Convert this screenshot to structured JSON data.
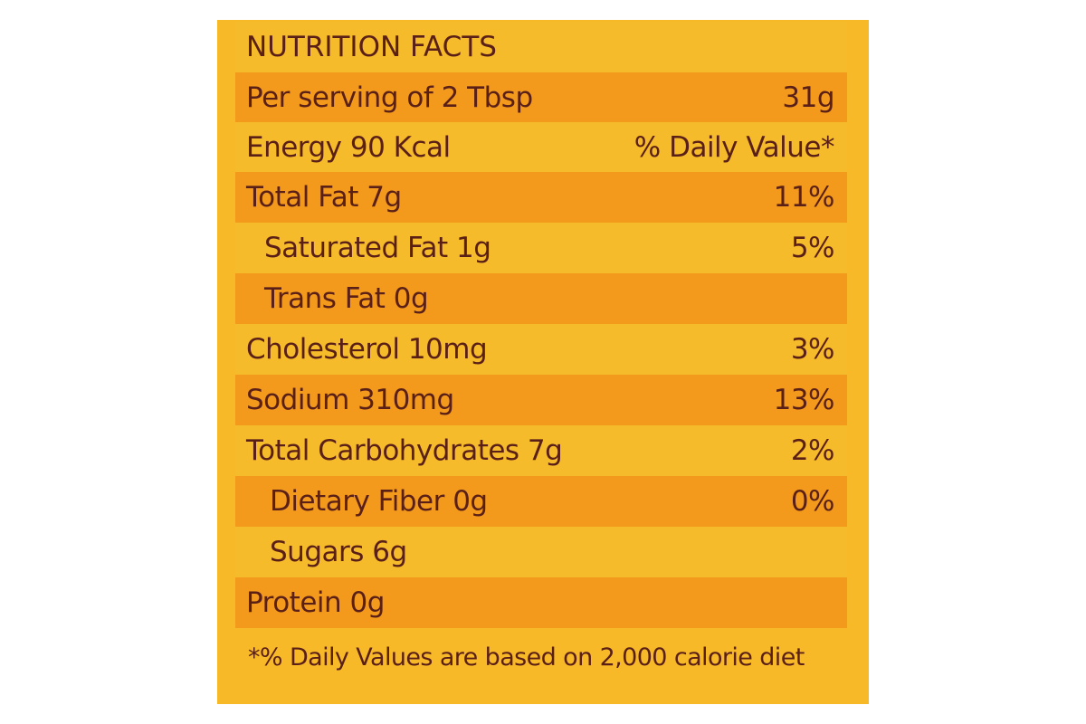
{
  "label": {
    "title": "NUTRITION FACTS",
    "rows": [
      {
        "name": "Per serving of 2 Tbsp",
        "value": "31g"
      },
      {
        "name": "Energy 90 Kcal",
        "value": "% Daily Value*"
      },
      {
        "name": "Total Fat 7g",
        "value": "11%"
      },
      {
        "name": "Saturated Fat 1g",
        "value": "5%"
      },
      {
        "name": "Trans Fat 0g",
        "value": ""
      },
      {
        "name": "Cholesterol 10mg",
        "value": "3%"
      },
      {
        "name": "Sodium 310mg",
        "value": "13%"
      },
      {
        "name": "Total Carbohydrates 7g",
        "value": "2%"
      },
      {
        "name": "Dietary Fiber 0g",
        "value": "0%"
      },
      {
        "name": "Sugars 6g",
        "value": ""
      },
      {
        "name": "Protein 0g",
        "value": ""
      }
    ],
    "footnote": "*% Daily Values are based on 2,000 calorie diet",
    "colors": {
      "background": "#f7b928",
      "band_orange": "#f39a1c",
      "band_yellow": "#f6bb2a",
      "text": "#5a1f17"
    }
  }
}
